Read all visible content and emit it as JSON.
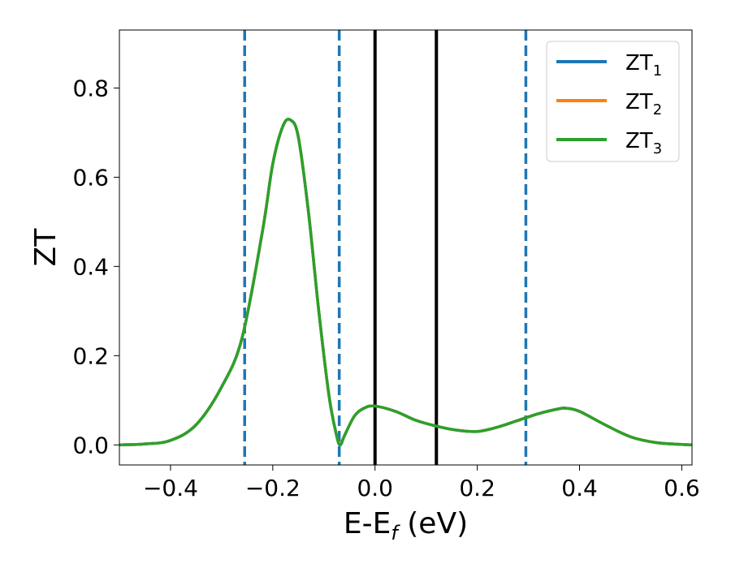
{
  "chart_data": {
    "type": "line",
    "xlabel": "E-E",
    "xlabel_sub": "f",
    "xlabel_unit": " (eV)",
    "ylabel": "ZT",
    "xlim": [
      -0.5,
      0.62
    ],
    "ylim": [
      -0.045,
      0.93
    ],
    "grid": false,
    "legend_position": "top-right",
    "x_ticks": [
      {
        "value": -0.4,
        "label": "−0.4"
      },
      {
        "value": -0.2,
        "label": "−0.2"
      },
      {
        "value": 0.0,
        "label": "0.0"
      },
      {
        "value": 0.2,
        "label": "0.2"
      },
      {
        "value": 0.4,
        "label": "0.4"
      },
      {
        "value": 0.6,
        "label": "0.6"
      }
    ],
    "y_ticks": [
      {
        "value": 0.0,
        "label": "0.0"
      },
      {
        "value": 0.2,
        "label": "0.2"
      },
      {
        "value": 0.4,
        "label": "0.4"
      },
      {
        "value": 0.6,
        "label": "0.6"
      },
      {
        "value": 0.8,
        "label": "0.8"
      }
    ],
    "series": [
      {
        "name": "ZT",
        "name_sub": "1",
        "color": "#1f77b4",
        "x": [
          -0.5,
          -0.45,
          -0.4,
          -0.35,
          -0.3,
          -0.26,
          -0.22,
          -0.2,
          -0.18,
          -0.165,
          -0.15,
          -0.13,
          -0.11,
          -0.09,
          -0.075,
          -0.068,
          -0.06,
          -0.04,
          -0.02,
          0.0,
          0.04,
          0.08,
          0.12,
          0.16,
          0.2,
          0.24,
          0.28,
          0.32,
          0.36,
          0.375,
          0.4,
          0.45,
          0.5,
          0.55,
          0.6,
          0.62
        ],
        "y": [
          0.0,
          0.002,
          0.01,
          0.045,
          0.13,
          0.24,
          0.48,
          0.63,
          0.715,
          0.728,
          0.69,
          0.52,
          0.3,
          0.11,
          0.02,
          0.0,
          0.02,
          0.065,
          0.083,
          0.087,
          0.075,
          0.055,
          0.042,
          0.033,
          0.03,
          0.04,
          0.055,
          0.07,
          0.081,
          0.082,
          0.075,
          0.045,
          0.018,
          0.005,
          0.001,
          0.0
        ]
      },
      {
        "name": "ZT",
        "name_sub": "2",
        "color": "#ff7f0e",
        "x": [
          -0.5,
          -0.45,
          -0.4,
          -0.35,
          -0.3,
          -0.26,
          -0.22,
          -0.2,
          -0.18,
          -0.165,
          -0.15,
          -0.13,
          -0.11,
          -0.09,
          -0.075,
          -0.068,
          -0.06,
          -0.04,
          -0.02,
          0.0,
          0.04,
          0.08,
          0.12,
          0.16,
          0.2,
          0.24,
          0.28,
          0.32,
          0.36,
          0.375,
          0.4,
          0.45,
          0.5,
          0.55,
          0.6,
          0.62
        ],
        "y": [
          0.0,
          0.002,
          0.01,
          0.045,
          0.13,
          0.24,
          0.48,
          0.63,
          0.715,
          0.728,
          0.69,
          0.52,
          0.3,
          0.11,
          0.02,
          0.0,
          0.02,
          0.065,
          0.083,
          0.087,
          0.075,
          0.055,
          0.042,
          0.033,
          0.03,
          0.04,
          0.055,
          0.07,
          0.081,
          0.082,
          0.075,
          0.045,
          0.018,
          0.005,
          0.001,
          0.0
        ]
      },
      {
        "name": "ZT",
        "name_sub": "3",
        "color": "#2ca02c",
        "x": [
          -0.5,
          -0.45,
          -0.4,
          -0.35,
          -0.3,
          -0.26,
          -0.22,
          -0.2,
          -0.18,
          -0.165,
          -0.15,
          -0.13,
          -0.11,
          -0.09,
          -0.075,
          -0.068,
          -0.06,
          -0.04,
          -0.02,
          0.0,
          0.04,
          0.08,
          0.12,
          0.16,
          0.2,
          0.24,
          0.28,
          0.32,
          0.36,
          0.375,
          0.4,
          0.45,
          0.5,
          0.55,
          0.6,
          0.62
        ],
        "y": [
          0.0,
          0.002,
          0.01,
          0.045,
          0.13,
          0.24,
          0.48,
          0.63,
          0.715,
          0.728,
          0.69,
          0.52,
          0.3,
          0.11,
          0.02,
          0.0,
          0.02,
          0.065,
          0.083,
          0.087,
          0.075,
          0.055,
          0.042,
          0.033,
          0.03,
          0.04,
          0.055,
          0.07,
          0.081,
          0.082,
          0.075,
          0.045,
          0.018,
          0.005,
          0.001,
          0.0
        ]
      }
    ],
    "vertical_lines": [
      {
        "x": -0.255,
        "style": "dashed",
        "color": "#1f77b4"
      },
      {
        "x": -0.07,
        "style": "dashed",
        "color": "#1f77b4"
      },
      {
        "x": 0.0,
        "style": "solid",
        "color": "#000000"
      },
      {
        "x": 0.12,
        "style": "solid",
        "color": "#000000"
      },
      {
        "x": 0.295,
        "style": "dashed",
        "color": "#1f77b4"
      }
    ]
  }
}
